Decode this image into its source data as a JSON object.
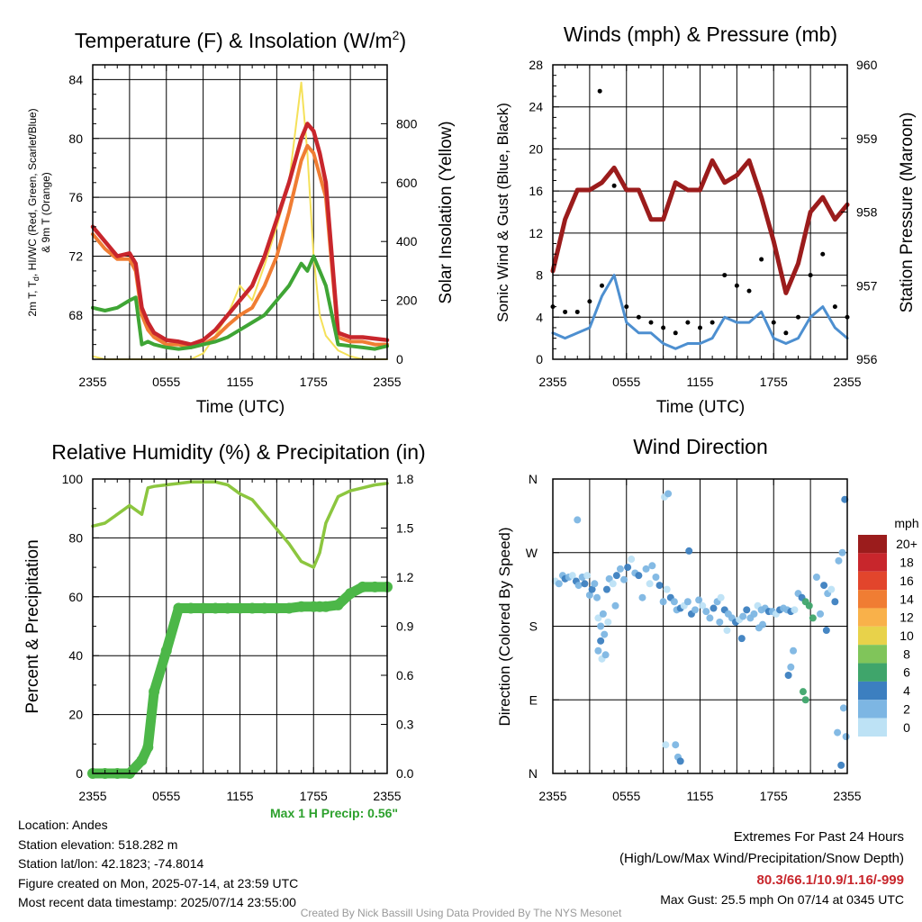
{
  "charts": {
    "temp": {
      "title": "Temperature (F) & Insolation (W/m",
      "title_sup": "2",
      "title_end": ")",
      "ylabel_line1": "2m T, T",
      "ylabel_sub": "d",
      "ylabel_line1_end": ", HI/WC (Red, Green, Scarlet/Blue)",
      "ylabel_line2": "& 9m T (Orange)",
      "y2label": "Solar Insolation (Yellow)",
      "xlabel": "Time (UTC)"
    },
    "wind": {
      "title": "Winds (mph) & Pressure (mb)",
      "ylabel": "Sonic Wind & Gust (Blue, Black)",
      "y2label": "Station Pressure (Maroon)",
      "xlabel": "Time (UTC)"
    },
    "rh": {
      "title": "Relative Humidity (%) & Precipitation (in)",
      "ylabel": "Percent & Precipitation",
      "max_precip": "Max 1 H Precip: 0.56\""
    },
    "dir": {
      "title": "Wind Direction",
      "ylabel": "Direction (Colored By Speed)",
      "colorbar_title": "mph"
    }
  },
  "chart_data": [
    {
      "type": "line",
      "title": "Temperature (F) & Insolation (W/m2)",
      "xlabel": "Time (UTC)",
      "ylabel": "2m T, Td, HI/WC (Red, Green, Scarlet/Blue) & 9m T (Orange)",
      "y2label": "Solar Insolation (Yellow)",
      "x_ticks": [
        "2355",
        "0555",
        "1155",
        "1755",
        "2355"
      ],
      "x": [
        0,
        1,
        2,
        3,
        3.5,
        4,
        4.5,
        5,
        6,
        7,
        8,
        9,
        10,
        11,
        12,
        13,
        14,
        15,
        16,
        17,
        17.5,
        18,
        18.5,
        19,
        20,
        21,
        22,
        23,
        24
      ],
      "ylim": [
        65,
        85
      ],
      "yticks": [
        68,
        72,
        76,
        80,
        84
      ],
      "y2lim": [
        0,
        1000
      ],
      "y2ticks": [
        0,
        200,
        400,
        600,
        800
      ],
      "grid": true,
      "series": [
        {
          "name": "2m T",
          "axis": "left",
          "color": "#c8262c",
          "values": [
            74.0,
            73.0,
            72.0,
            72.2,
            71.5,
            68.5,
            67.5,
            66.8,
            66.3,
            66.2,
            66.0,
            66.3,
            67.0,
            68.0,
            69.0,
            70.0,
            72.0,
            74.5,
            77.0,
            80.0,
            81.0,
            80.5,
            79.0,
            77.0,
            66.8,
            66.5,
            66.5,
            66.4,
            66.3
          ]
        },
        {
          "name": "9m T",
          "axis": "left",
          "color": "#f07d33",
          "values": [
            73.5,
            72.5,
            71.8,
            71.8,
            71.0,
            68.0,
            67.0,
            66.5,
            66.0,
            66.0,
            65.8,
            66.0,
            66.5,
            67.3,
            68.0,
            68.5,
            70.0,
            72.0,
            75.0,
            78.5,
            79.5,
            79.0,
            77.5,
            76.0,
            66.5,
            66.2,
            66.2,
            66.0,
            66.0
          ]
        },
        {
          "name": "2m Td",
          "axis": "left",
          "color": "#3fa535",
          "values": [
            68.5,
            68.3,
            68.5,
            69.0,
            69.2,
            66.0,
            66.2,
            66.0,
            65.8,
            65.7,
            65.8,
            66.0,
            66.2,
            66.5,
            67.0,
            67.5,
            68.0,
            69.0,
            70.0,
            71.5,
            71.0,
            72.0,
            71.0,
            70.0,
            66.0,
            65.9,
            65.8,
            65.7,
            65.9
          ]
        },
        {
          "name": "Solar Insolation",
          "axis": "right",
          "color": "#f5e15a",
          "values": [
            10,
            0,
            0,
            0,
            0,
            0,
            0,
            0,
            0,
            0,
            0,
            20,
            80,
            150,
            250,
            200,
            320,
            450,
            600,
            940,
            700,
            350,
            150,
            80,
            30,
            10,
            0,
            0,
            0
          ]
        }
      ]
    },
    {
      "type": "line",
      "title": "Winds (mph) & Pressure (mb)",
      "xlabel": "Time (UTC)",
      "ylabel": "Sonic Wind & Gust (Blue, Black)",
      "y2label": "Station Pressure (Maroon)",
      "x_ticks": [
        "2355",
        "0555",
        "1155",
        "1755",
        "2355"
      ],
      "x": [
        0,
        1,
        2,
        3,
        4,
        5,
        6,
        7,
        8,
        9,
        10,
        11,
        12,
        13,
        14,
        15,
        16,
        17,
        18,
        19,
        20,
        21,
        22,
        23,
        24
      ],
      "ylim": [
        0,
        28
      ],
      "yticks": [
        0,
        4,
        8,
        12,
        16,
        20,
        24,
        28
      ],
      "y2lim": [
        956,
        960
      ],
      "y2ticks": [
        956,
        957,
        958,
        959,
        960
      ],
      "grid": true,
      "series": [
        {
          "name": "Station Pressure",
          "axis": "right",
          "color": "#9b1c1c",
          "values": [
            957.2,
            957.9,
            958.3,
            958.3,
            958.4,
            958.6,
            958.3,
            958.3,
            957.9,
            957.9,
            958.4,
            958.3,
            958.3,
            958.7,
            958.4,
            958.5,
            958.7,
            958.2,
            957.6,
            956.9,
            957.3,
            958.0,
            958.2,
            957.9,
            958.1
          ]
        },
        {
          "name": "Sonic Wind",
          "axis": "left",
          "color": "#4d8fd0",
          "values": [
            2.5,
            2.0,
            2.5,
            3.0,
            6.0,
            8.0,
            3.5,
            2.5,
            2.5,
            1.5,
            1.0,
            1.5,
            1.5,
            2.0,
            4.0,
            3.5,
            3.5,
            4.5,
            2.0,
            1.5,
            2.0,
            4.0,
            5.0,
            3.0,
            2.0
          ]
        },
        {
          "name": "Gust",
          "axis": "left",
          "color": "#000000",
          "markers": true,
          "values": [
            5.0,
            4.5,
            4.5,
            5.5,
            7.0,
            16.5,
            5.0,
            4.0,
            3.5,
            3.0,
            2.5,
            3.5,
            3.0,
            3.5,
            8.0,
            7.0,
            6.5,
            9.5,
            3.5,
            2.5,
            4.0,
            8.0,
            10.0,
            5.0,
            4.0
          ]
        },
        {
          "name": "Max Gust",
          "axis": "left",
          "color": "#000000",
          "markers": true,
          "x": [
            3.83
          ],
          "values": [
            25.5
          ]
        }
      ]
    },
    {
      "type": "line",
      "title": "Relative Humidity (%) & Precipitation (in)",
      "xlabel": "",
      "ylabel": "Percent & Precipitation",
      "x_ticks": [
        "2355",
        "0555",
        "1155",
        "1755",
        "2355"
      ],
      "x": [
        0,
        1,
        2,
        3,
        4,
        4.5,
        5,
        6,
        7,
        8,
        9,
        10,
        11,
        12,
        13,
        14,
        15,
        16,
        17,
        18,
        18.5,
        19,
        20,
        21,
        22,
        23,
        24
      ],
      "ylim": [
        0,
        100
      ],
      "yticks": [
        0,
        20,
        40,
        60,
        80,
        100
      ],
      "y2lim": [
        0,
        1.8
      ],
      "y2ticks": [
        0.0,
        0.3,
        0.6,
        0.9,
        1.2,
        1.5,
        1.8
      ],
      "grid": true,
      "series": [
        {
          "name": "Relative Humidity",
          "axis": "left",
          "color": "#8cc63f",
          "values": [
            84,
            85,
            88,
            91,
            88,
            97,
            97.5,
            98,
            98.5,
            99,
            99,
            99,
            98,
            95,
            93,
            88,
            83,
            78,
            72,
            70,
            75,
            85,
            94,
            96,
            97,
            98,
            98.5
          ]
        },
        {
          "name": "Precipitation",
          "axis": "right",
          "color": "#4cb748",
          "markers": true,
          "values": [
            0,
            0,
            0,
            0,
            0.08,
            0.16,
            0.5,
            0.75,
            1.01,
            1.01,
            1.01,
            1.01,
            1.01,
            1.01,
            1.01,
            1.01,
            1.01,
            1.01,
            1.02,
            1.02,
            1.02,
            1.02,
            1.03,
            1.1,
            1.14,
            1.14,
            1.14
          ]
        }
      ]
    },
    {
      "type": "scatter",
      "title": "Wind Direction",
      "xlabel": "",
      "ylabel": "Direction (Colored By Speed)",
      "x_ticks": [
        "2355",
        "0555",
        "1155",
        "1755",
        "2355"
      ],
      "y_ticks": [
        "N",
        "W",
        "S",
        "E",
        "N"
      ],
      "ylim": [
        0,
        360
      ],
      "colorbar": {
        "title": "mph",
        "labels": [
          "20+",
          "18",
          "16",
          "14",
          "12",
          "10",
          "8",
          "6",
          "4",
          "2",
          "0"
        ],
        "colors": [
          "#9b1c1c",
          "#c8262c",
          "#e2452c",
          "#f07d33",
          "#f9b14a",
          "#e8d24a",
          "#80c55a",
          "#3fa56b",
          "#3c7fc0",
          "#7db6e3",
          "#bde2f5"
        ]
      },
      "grid": true,
      "x": [
        0.2,
        0.5,
        0.8,
        1.0,
        1.3,
        1.6,
        1.9,
        2.1,
        2.4,
        2.6,
        2.8,
        3.0,
        3.2,
        3.4,
        3.6,
        3.7,
        3.9,
        4.1,
        4.4,
        4.6,
        4.9,
        5.2,
        5.5,
        5.8,
        6.1,
        6.4,
        6.7,
        7.0,
        7.3,
        7.6,
        7.9,
        8.1,
        8.4,
        8.7,
        9.0,
        9.3,
        9.6,
        9.9,
        10.1,
        10.4,
        10.7,
        11.0,
        11.3,
        11.6,
        11.9,
        12.2,
        12.5,
        12.8,
        13.1,
        13.4,
        13.7,
        14.0,
        14.3,
        14.6,
        14.9,
        15.2,
        15.5,
        15.8,
        16.1,
        16.4,
        16.7,
        17.0,
        17.3,
        17.6,
        17.9,
        18.2,
        18.5,
        18.8,
        19.1,
        19.4,
        19.7,
        20.0,
        20.3,
        20.6,
        20.9,
        21.2,
        21.5,
        21.8,
        22.1,
        22.4,
        22.7,
        23.0,
        23.3,
        23.6,
        23.8,
        4.0,
        4.3,
        3.9,
        3.7,
        4.2,
        9.1,
        9.4,
        10.2,
        10.4,
        10.0,
        9.2,
        19.2,
        19.4,
        19.6,
        20.4,
        20.6,
        23.2,
        23.5,
        23.7,
        23.9,
        4.5,
        5.1,
        2.0,
        11.1,
        13.6,
        14.2,
        15.4,
        16.8,
        17.1,
        22.3
      ],
      "values": [
        125,
        128,
        118,
        122,
        120,
        118,
        125,
        130,
        120,
        128,
        118,
        142,
        135,
        128,
        145,
        170,
        180,
        165,
        135,
        122,
        128,
        118,
        110,
        123,
        108,
        98,
        115,
        118,
        145,
        110,
        128,
        106,
        120,
        130,
        150,
        135,
        145,
        150,
        160,
        158,
        155,
        150,
        165,
        160,
        148,
        155,
        162,
        170,
        158,
        150,
        145,
        160,
        165,
        170,
        175,
        172,
        168,
        160,
        170,
        165,
        155,
        160,
        158,
        162,
        162,
        165,
        160,
        158,
        160,
        162,
        160,
        140,
        145,
        150,
        155,
        170,
        120,
        165,
        130,
        140,
        135,
        150,
        100,
        90,
        25,
        220,
        215,
        198,
        210,
        190,
        22,
        18,
        340,
        345,
        325,
        325,
        240,
        230,
        210,
        260,
        270,
        310,
        350,
        280,
        315,
        175,
        155,
        50,
        88,
        175,
        185,
        195,
        182,
        178,
        185
      ]
    }
  ],
  "info": {
    "location": "Location: Andes",
    "elevation": "Station elevation: 518.282 m",
    "latlon": "Station lat/lon: 42.1823; -74.8014",
    "created": "Figure created on Mon, 2025-07-14, at 23:59 UTC",
    "recent": "Most recent data timestamp: 2025/07/14 23:55:00"
  },
  "extremes": {
    "title": "Extremes For Past 24 Hours",
    "subtitle": "(High/Low/Max Wind/Precipitation/Snow Depth)",
    "values": "80.3/66.1/10.9/1.16/-999",
    "max_gust": "Max Gust: 25.5 mph On 07/14 at 0345 UTC"
  },
  "credit": "Created By Nick Bassill Using Data Provided By The NYS Mesonet"
}
